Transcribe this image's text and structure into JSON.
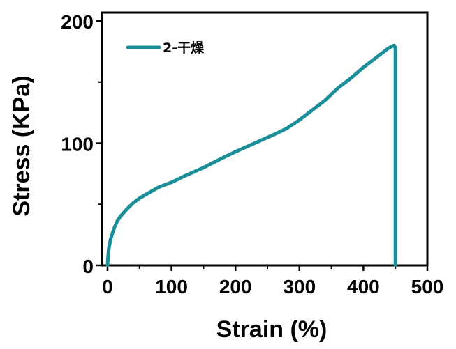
{
  "chart_data": {
    "type": "line",
    "title": "",
    "xlabel": "Strain (%)",
    "ylabel": "Stress (KPa)",
    "xlim": [
      0,
      500
    ],
    "ylim": [
      0,
      200
    ],
    "xticks": [
      0,
      100,
      200,
      300,
      400,
      500
    ],
    "yticks": [
      0,
      100,
      200
    ],
    "xtick_labels": [
      "0",
      "100",
      "200",
      "300",
      "400",
      "500"
    ],
    "ytick_labels": [
      "0",
      "100",
      "200"
    ],
    "grid": false,
    "legend_position": "top-left",
    "series": [
      {
        "name": "2-干燥",
        "color": "#1a8f9a",
        "x": [
          0,
          1,
          2,
          5,
          10,
          15,
          20,
          30,
          40,
          50,
          60,
          80,
          100,
          120,
          150,
          180,
          200,
          230,
          260,
          280,
          300,
          320,
          340,
          360,
          380,
          400,
          420,
          440,
          448,
          450,
          450
        ],
        "y": [
          0,
          8,
          14,
          22,
          30,
          36,
          40,
          46,
          51,
          55,
          58,
          64,
          68,
          73,
          80,
          88,
          93,
          100,
          107,
          112,
          119,
          127,
          135,
          145,
          153,
          162,
          170,
          178,
          180,
          178,
          0
        ]
      }
    ]
  }
}
